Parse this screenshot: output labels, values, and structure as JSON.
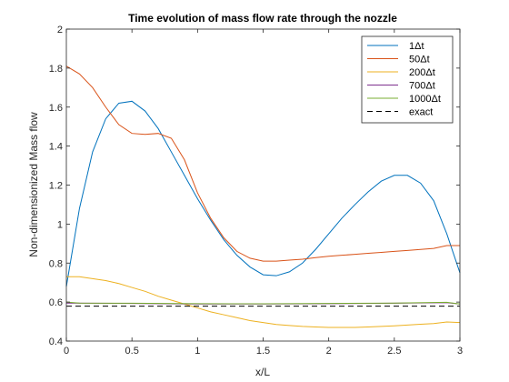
{
  "chart_data": {
    "type": "line",
    "title": "Time evolution of mass flow rate through the nozzle",
    "xlabel": "x/L",
    "ylabel": "Non-dimensionized Mass flow",
    "xlim": [
      0,
      3
    ],
    "ylim": [
      0.4,
      2
    ],
    "xticks": [
      0,
      0.5,
      1,
      1.5,
      2,
      2.5,
      3
    ],
    "yticks": [
      0.4,
      0.6,
      0.8,
      1,
      1.2,
      1.4,
      1.6,
      1.8,
      2
    ],
    "xtick_labels": [
      "0",
      "0.5",
      "1",
      "1.5",
      "2",
      "2.5",
      "3"
    ],
    "ytick_labels": [
      "0.4",
      "0.6",
      "0.8",
      "1",
      "1.2",
      "1.4",
      "1.6",
      "1.8",
      "2"
    ],
    "grid": false,
    "legend_position": "top-right",
    "series": [
      {
        "name": "1Δt",
        "color": "#0072BD",
        "dash": "solid",
        "x": [
          0,
          0.1,
          0.2,
          0.3,
          0.4,
          0.5,
          0.6,
          0.7,
          0.8,
          0.9,
          1.0,
          1.1,
          1.2,
          1.3,
          1.4,
          1.5,
          1.6,
          1.7,
          1.8,
          1.9,
          2.0,
          2.1,
          2.2,
          2.3,
          2.4,
          2.5,
          2.6,
          2.7,
          2.8,
          2.9,
          3.0
        ],
        "y": [
          0.68,
          1.08,
          1.37,
          1.54,
          1.62,
          1.63,
          1.58,
          1.49,
          1.37,
          1.25,
          1.13,
          1.02,
          0.92,
          0.84,
          0.78,
          0.74,
          0.735,
          0.755,
          0.8,
          0.87,
          0.95,
          1.03,
          1.1,
          1.165,
          1.22,
          1.25,
          1.25,
          1.21,
          1.12,
          0.95,
          0.75
        ]
      },
      {
        "name": "50Δt",
        "color": "#D95319",
        "dash": "solid",
        "x": [
          0,
          0.1,
          0.2,
          0.3,
          0.4,
          0.5,
          0.6,
          0.7,
          0.8,
          0.9,
          1.0,
          1.1,
          1.2,
          1.3,
          1.4,
          1.5,
          1.6,
          1.7,
          1.8,
          1.9,
          2.0,
          2.1,
          2.2,
          2.3,
          2.4,
          2.5,
          2.6,
          2.7,
          2.8,
          2.9,
          3.0
        ],
        "y": [
          1.81,
          1.77,
          1.7,
          1.6,
          1.51,
          1.465,
          1.46,
          1.465,
          1.44,
          1.33,
          1.16,
          1.03,
          0.93,
          0.86,
          0.825,
          0.81,
          0.81,
          0.815,
          0.82,
          0.828,
          0.835,
          0.84,
          0.845,
          0.85,
          0.855,
          0.86,
          0.865,
          0.87,
          0.875,
          0.89,
          0.89
        ]
      },
      {
        "name": "200Δt",
        "color": "#EDB120",
        "dash": "solid",
        "x": [
          0,
          0.1,
          0.2,
          0.3,
          0.4,
          0.5,
          0.6,
          0.7,
          0.8,
          0.9,
          1.0,
          1.1,
          1.2,
          1.3,
          1.4,
          1.5,
          1.6,
          1.7,
          1.8,
          1.9,
          2.0,
          2.1,
          2.2,
          2.3,
          2.4,
          2.5,
          2.6,
          2.7,
          2.8,
          2.9,
          3.0
        ],
        "y": [
          0.73,
          0.73,
          0.72,
          0.71,
          0.695,
          0.675,
          0.655,
          0.63,
          0.61,
          0.59,
          0.57,
          0.55,
          0.535,
          0.52,
          0.505,
          0.495,
          0.485,
          0.48,
          0.475,
          0.472,
          0.47,
          0.47,
          0.47,
          0.472,
          0.475,
          0.478,
          0.482,
          0.486,
          0.49,
          0.498,
          0.495
        ]
      },
      {
        "name": "700Δt",
        "color": "#7E2F8E",
        "dash": "solid",
        "x": [
          0,
          0.5,
          1.0,
          1.5,
          2.0,
          2.5,
          2.9,
          3.0
        ],
        "y": [
          0.595,
          0.593,
          0.59,
          0.59,
          0.592,
          0.594,
          0.597,
          0.59
        ]
      },
      {
        "name": "1000Δt",
        "color": "#77AC30",
        "dash": "solid",
        "x": [
          0,
          0.1,
          0.5,
          1.0,
          1.5,
          2.0,
          2.5,
          2.9,
          3.0
        ],
        "y": [
          0.6,
          0.595,
          0.594,
          0.592,
          0.591,
          0.593,
          0.595,
          0.599,
          0.59
        ]
      },
      {
        "name": "exact",
        "color": "#000000",
        "dash": "dashed",
        "x": [
          0,
          3
        ],
        "y": [
          0.579,
          0.579
        ]
      }
    ]
  }
}
